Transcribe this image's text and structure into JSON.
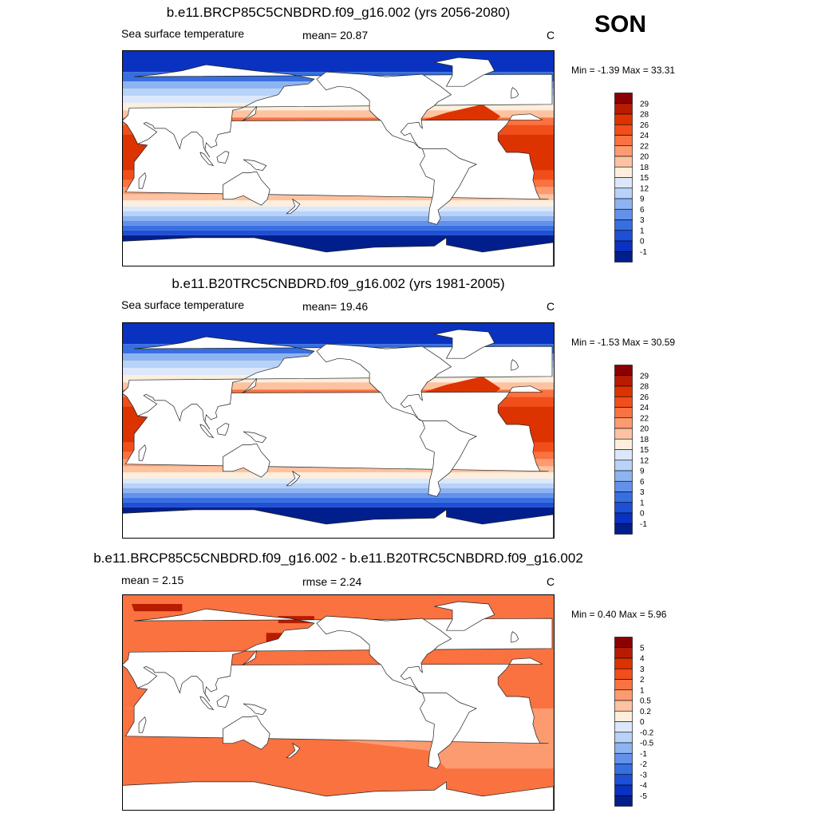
{
  "season": "SON",
  "panels": [
    {
      "title": "b.e11.BRCP85C5CNBDRD.f09_g16.002 (yrs 2056-2080)",
      "left_label": "Sea surface temperature",
      "mid_label": "mean=  20.87",
      "units": "C",
      "minmax": "Min =  -1.39 Max =  33.31",
      "kind": "sst",
      "scale": 1.1,
      "colorbar": {
        "labels": [
          "29",
          "28",
          "26",
          "24",
          "22",
          "20",
          "18",
          "15",
          "12",
          "9",
          "6",
          "3",
          "1",
          "0",
          "-1"
        ],
        "colors": [
          "#8b0000",
          "#b81c00",
          "#dd3300",
          "#f24e1a",
          "#fa7240",
          "#fc9b70",
          "#fdc3a0",
          "#fdeedd",
          "#dbe8fb",
          "#b8d2f8",
          "#8db3f0",
          "#6291ea",
          "#376ee0",
          "#1e4fd6",
          "#0a32c0",
          "#001f8c"
        ]
      }
    },
    {
      "title": "b.e11.B20TRC5CNBDRD.f09_g16.002 (yrs 1981-2005)",
      "left_label": "Sea surface temperature",
      "mid_label": "mean=  19.46",
      "units": "C",
      "minmax": "Min =  -1.53 Max =  30.59",
      "kind": "sst",
      "scale": 1.0,
      "colorbar": {
        "labels": [
          "29",
          "28",
          "26",
          "24",
          "22",
          "20",
          "18",
          "15",
          "12",
          "9",
          "6",
          "3",
          "1",
          "0",
          "-1"
        ],
        "colors": [
          "#8b0000",
          "#b81c00",
          "#dd3300",
          "#f24e1a",
          "#fa7240",
          "#fc9b70",
          "#fdc3a0",
          "#fdeedd",
          "#dbe8fb",
          "#b8d2f8",
          "#8db3f0",
          "#6291ea",
          "#376ee0",
          "#1e4fd6",
          "#0a32c0",
          "#001f8c"
        ]
      }
    },
    {
      "title": "b.e11.BRCP85C5CNBDRD.f09_g16.002 - b.e11.B20TRC5CNBDRD.f09_g16.002",
      "left_label": "mean =   2.15",
      "mid_label": "rmse =   2.24",
      "units": "C",
      "minmax": "Min =   0.40 Max =   5.96",
      "kind": "diff",
      "scale": 1.0,
      "colorbar": {
        "labels": [
          "5",
          "4",
          "3",
          "2",
          "1",
          "0.5",
          "0.2",
          "0",
          "-0.2",
          "-0.5",
          "-1",
          "-2",
          "-3",
          "-4",
          "-5"
        ],
        "colors": [
          "#8b0000",
          "#b81c00",
          "#dd3300",
          "#f24e1a",
          "#fa7240",
          "#fc9b70",
          "#fdc3a0",
          "#fdeedd",
          "#dbe8fb",
          "#b8d2f8",
          "#8db3f0",
          "#6291ea",
          "#376ee0",
          "#1e4fd6",
          "#0a32c0",
          "#001f8c"
        ]
      }
    }
  ],
  "chart_data": [
    {
      "type": "heatmap",
      "title": "b.e11.BRCP85C5CNBDRD.f09_g16.002 (yrs 2056-2080)",
      "variable": "Sea surface temperature",
      "units": "C",
      "mean": 20.87,
      "min": -1.39,
      "max": 33.31,
      "colorbar_levels": [
        -1,
        0,
        1,
        3,
        6,
        9,
        12,
        15,
        18,
        20,
        22,
        24,
        26,
        28,
        29
      ]
    },
    {
      "type": "heatmap",
      "title": "b.e11.B20TRC5CNBDRD.f09_g16.002 (yrs 1981-2005)",
      "variable": "Sea surface temperature",
      "units": "C",
      "mean": 19.46,
      "min": -1.53,
      "max": 30.59,
      "colorbar_levels": [
        -1,
        0,
        1,
        3,
        6,
        9,
        12,
        15,
        18,
        20,
        22,
        24,
        26,
        28,
        29
      ]
    },
    {
      "type": "heatmap",
      "title": "b.e11.BRCP85C5CNBDRD.f09_g16.002 - b.e11.B20TRC5CNBDRD.f09_g16.002",
      "units": "C",
      "mean": 2.15,
      "rmse": 2.24,
      "min": 0.4,
      "max": 5.96,
      "colorbar_levels": [
        -5,
        -4,
        -3,
        -2,
        -1,
        -0.5,
        -0.2,
        0,
        0.2,
        0.5,
        1,
        2,
        3,
        4,
        5
      ]
    }
  ]
}
